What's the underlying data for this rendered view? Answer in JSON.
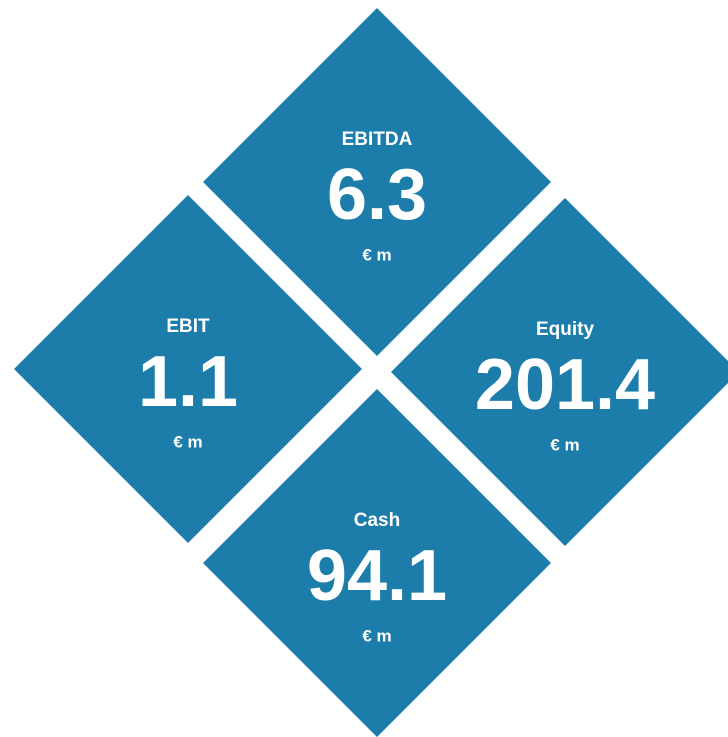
{
  "tiles": [
    {
      "label": "EBITDA",
      "value": 6.3,
      "unit": "€ m"
    },
    {
      "label": "EBIT",
      "value": 1.1,
      "unit": "€ m"
    },
    {
      "label": "Equity",
      "value": 201.4,
      "unit": "€ m"
    },
    {
      "label": "Cash",
      "value": 94.1,
      "unit": "€ m"
    }
  ]
}
